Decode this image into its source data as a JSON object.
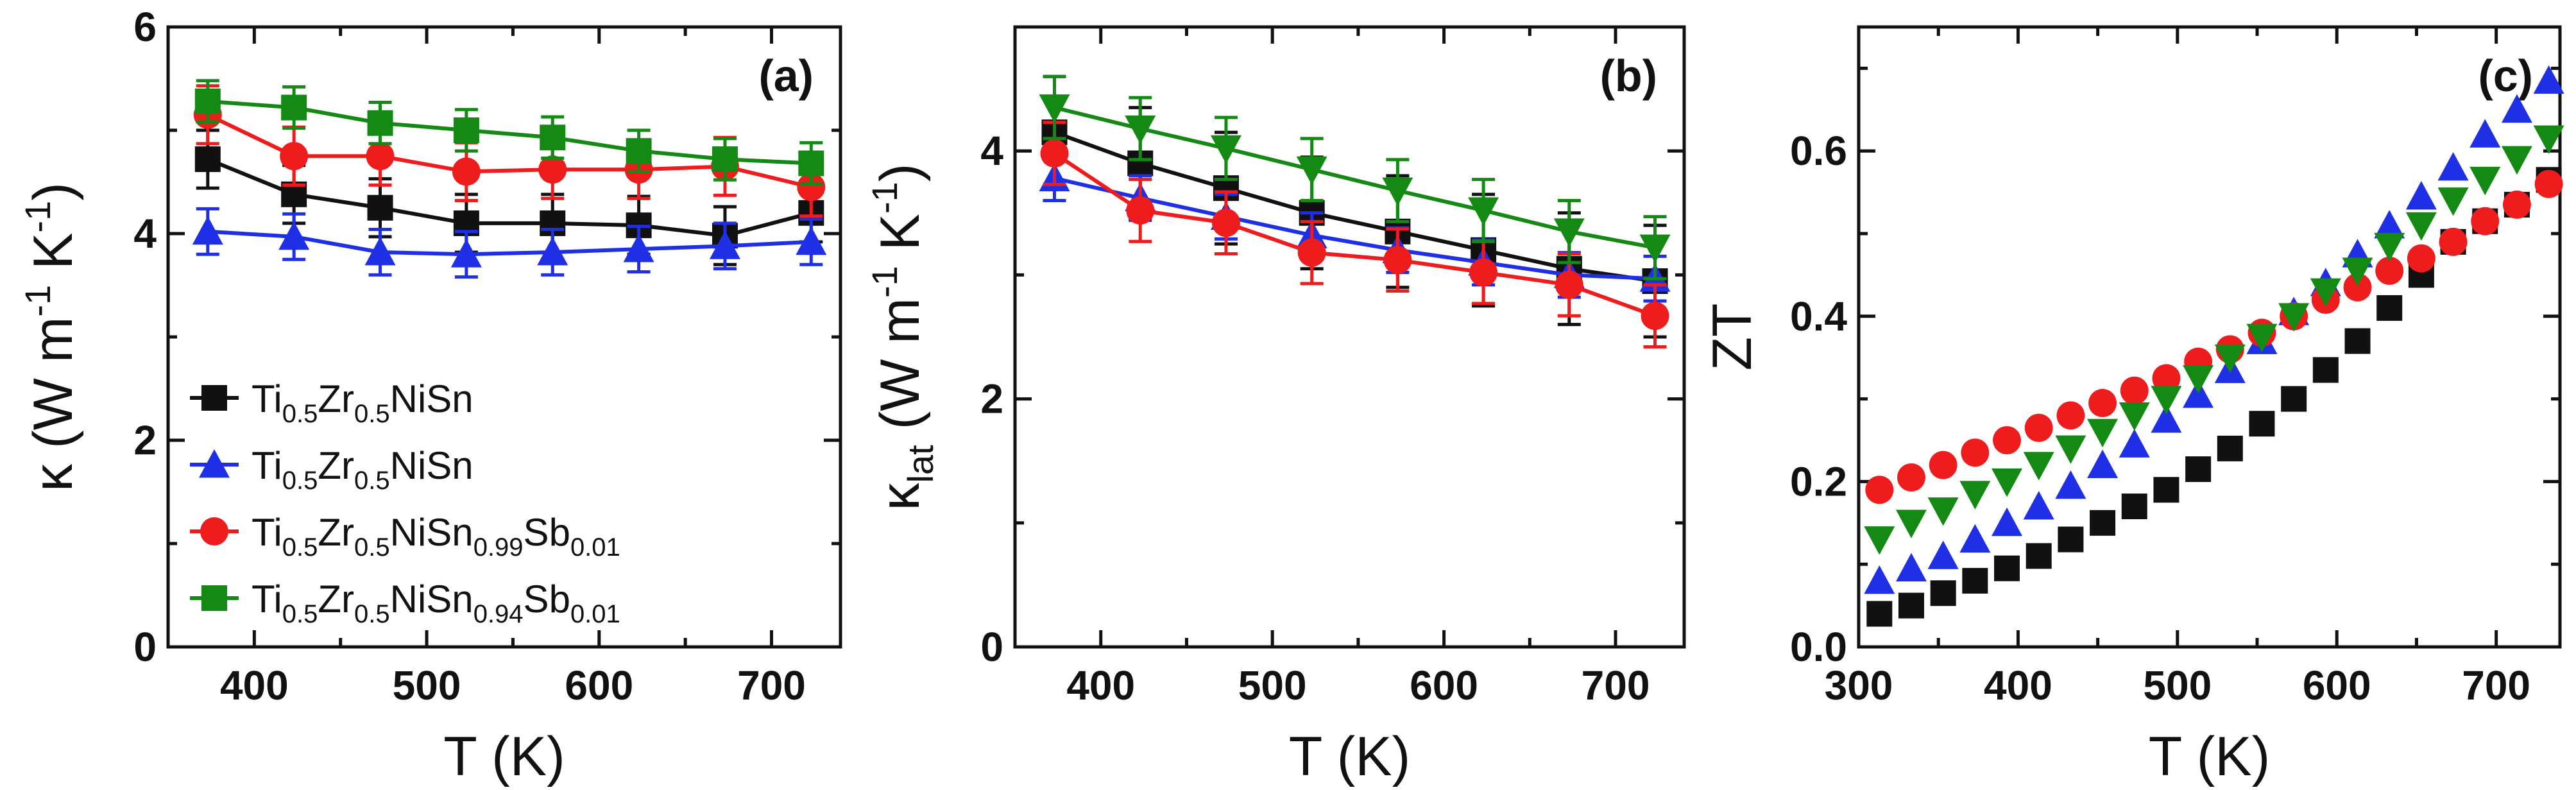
{
  "colors": {
    "black": "#111111",
    "blue": "#1f2fe6",
    "red": "#ee1c1c",
    "green": "#148a14"
  },
  "chart_data": [
    {
      "type": "line",
      "panel_label": "(a)",
      "xlabel": "T (K)",
      "ylabel_main": "κ (W m",
      "ylabel_sup1": "-1",
      "ylabel_mid": " K",
      "ylabel_sup2": "-1",
      "ylabel_end": ")",
      "xlim": [
        350,
        740
      ],
      "ylim": [
        0,
        6
      ],
      "xticks": [
        400,
        500,
        600,
        700
      ],
      "yticks": [
        0,
        2,
        4,
        6
      ],
      "x": [
        373,
        423,
        473,
        523,
        573,
        623,
        673,
        723
      ],
      "legend_position": "lower-left",
      "series": [
        {
          "color": "black",
          "marker": "square",
          "legend": [
            "Ti",
            "0.5",
            "Zr",
            "0.5",
            "NiSn"
          ],
          "values": [
            4.72,
            4.38,
            4.25,
            4.1,
            4.1,
            4.08,
            3.98,
            4.2
          ],
          "error": 0.28
        },
        {
          "color": "blue",
          "marker": "triangle-up",
          "legend": [
            "Ti",
            "0.5",
            "Zr",
            "0.5",
            "NiSn"
          ],
          "values": [
            4.02,
            3.97,
            3.82,
            3.8,
            3.82,
            3.85,
            3.88,
            3.92
          ],
          "error": 0.22
        },
        {
          "color": "red",
          "marker": "circle",
          "legend": [
            "Ti",
            "0.5",
            "Zr",
            "0.5",
            "NiSn",
            "0.99",
            "Sb",
            "0.01"
          ],
          "values": [
            5.15,
            4.75,
            4.75,
            4.6,
            4.62,
            4.62,
            4.65,
            4.45
          ],
          "error": 0.28
        },
        {
          "color": "green",
          "marker": "square",
          "legend": [
            "Ti",
            "0.5",
            "Zr",
            "0.5",
            "NiSn",
            "0.94",
            "Sb",
            "0.01"
          ],
          "values": [
            5.28,
            5.22,
            5.07,
            5.0,
            4.93,
            4.8,
            4.72,
            4.68
          ],
          "error": 0.2
        }
      ]
    },
    {
      "type": "line",
      "panel_label": "(b)",
      "xlabel": "T (K)",
      "ylabel_main": "κ",
      "ylabel_sub": "lat",
      "ylabel_unit": " (W m",
      "ylabel_sup1": "-1",
      "ylabel_mid": " K",
      "ylabel_sup2": "-1",
      "ylabel_end": ")",
      "xlim": [
        350,
        740
      ],
      "ylim": [
        0,
        5
      ],
      "xticks": [
        400,
        500,
        600,
        700
      ],
      "yticks": [
        0,
        2,
        4
      ],
      "x": [
        373,
        423,
        473,
        523,
        573,
        623,
        673,
        723
      ],
      "series": [
        {
          "color": "black",
          "marker": "square",
          "values": [
            4.15,
            3.9,
            3.7,
            3.5,
            3.35,
            3.2,
            3.05,
            2.95
          ],
          "error": 0.45
        },
        {
          "color": "blue",
          "marker": "triangle-up",
          "values": [
            3.78,
            3.62,
            3.47,
            3.32,
            3.2,
            3.1,
            3.0,
            2.97
          ],
          "error": 0.18
        },
        {
          "color": "red",
          "marker": "circle",
          "values": [
            3.98,
            3.52,
            3.42,
            3.18,
            3.12,
            3.02,
            2.92,
            2.67
          ],
          "error": 0.25
        },
        {
          "color": "green",
          "marker": "triangle-down",
          "values": [
            4.35,
            4.18,
            4.02,
            3.85,
            3.68,
            3.52,
            3.35,
            3.22
          ],
          "error": 0.25
        }
      ]
    },
    {
      "type": "scatter",
      "panel_label": "(c)",
      "xlabel": "T (K)",
      "ylabel": "ZT",
      "xlim": [
        300,
        740
      ],
      "ylim": [
        0,
        0.75
      ],
      "xticks": [
        300,
        400,
        500,
        600,
        700
      ],
      "yticks": [
        0.0,
        0.2,
        0.4,
        0.6
      ],
      "series": [
        {
          "color": "black",
          "marker": "square",
          "x": [
            313,
            333,
            353,
            373,
            393,
            413,
            433,
            453,
            473,
            493,
            513,
            533,
            553,
            573,
            593,
            613,
            633,
            653,
            673,
            693,
            713,
            733
          ],
          "values": [
            0.04,
            0.05,
            0.065,
            0.08,
            0.095,
            0.11,
            0.13,
            0.15,
            0.17,
            0.19,
            0.215,
            0.24,
            0.27,
            0.3,
            0.335,
            0.37,
            0.41,
            0.45,
            0.49,
            0.515,
            0.535,
            0.565
          ]
        },
        {
          "color": "blue",
          "marker": "triangle-up",
          "x": [
            313,
            333,
            353,
            373,
            393,
            413,
            433,
            453,
            473,
            493,
            513,
            533,
            553,
            573,
            593,
            613,
            633,
            653,
            673,
            693,
            713,
            733
          ],
          "values": [
            0.08,
            0.095,
            0.11,
            0.13,
            0.15,
            0.17,
            0.195,
            0.22,
            0.245,
            0.275,
            0.305,
            0.335,
            0.37,
            0.405,
            0.44,
            0.475,
            0.51,
            0.545,
            0.58,
            0.62,
            0.65,
            0.685
          ]
        },
        {
          "color": "red",
          "marker": "circle",
          "x": [
            313,
            333,
            353,
            373,
            393,
            413,
            433,
            453,
            473,
            493,
            513,
            533,
            553,
            573,
            593,
            613,
            633,
            653,
            673,
            693,
            713,
            733
          ],
          "values": [
            0.19,
            0.205,
            0.22,
            0.235,
            0.25,
            0.265,
            0.28,
            0.295,
            0.31,
            0.325,
            0.345,
            0.36,
            0.38,
            0.4,
            0.42,
            0.435,
            0.455,
            0.47,
            0.49,
            0.515,
            0.535,
            0.56
          ]
        },
        {
          "color": "green",
          "marker": "triangle-down",
          "x": [
            313,
            333,
            353,
            373,
            393,
            413,
            433,
            453,
            473,
            493,
            513,
            533,
            553,
            573,
            593,
            613,
            633,
            653,
            673,
            693,
            713,
            733
          ],
          "values": [
            0.13,
            0.15,
            0.165,
            0.185,
            0.2,
            0.22,
            0.24,
            0.26,
            0.28,
            0.3,
            0.325,
            0.35,
            0.375,
            0.4,
            0.43,
            0.455,
            0.485,
            0.51,
            0.54,
            0.565,
            0.59,
            0.615
          ]
        }
      ]
    }
  ]
}
